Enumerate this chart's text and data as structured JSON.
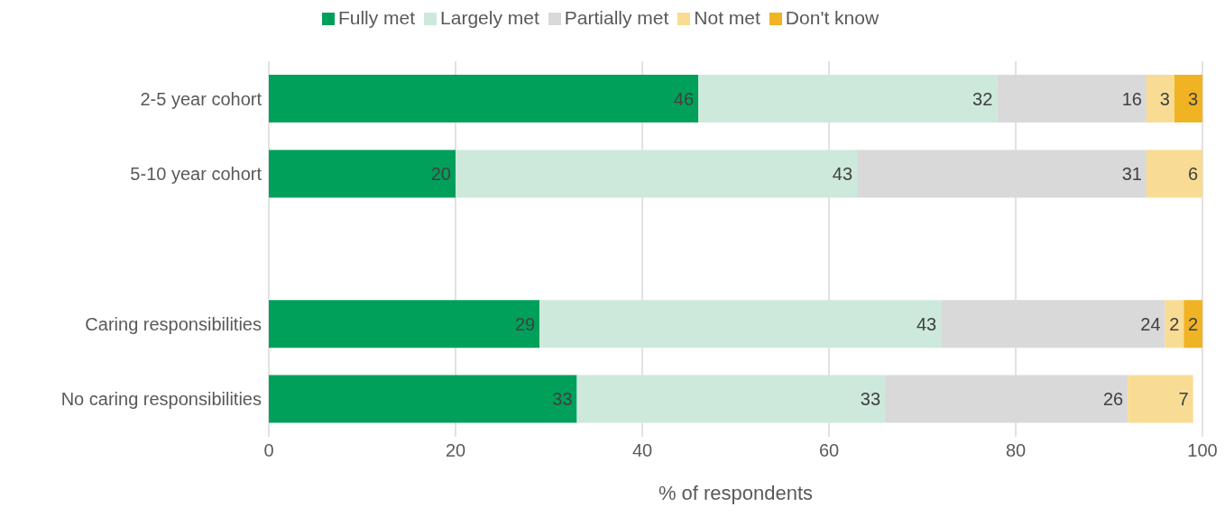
{
  "chart_data": {
    "type": "bar",
    "orientation": "horizontal",
    "stacked": true,
    "xlabel": "% of respondents",
    "categories": [
      "2-5 year cohort",
      "5-10 year cohort",
      null,
      "Caring responsibilities",
      "No caring responsibilities"
    ],
    "series": [
      {
        "name": "Fully met",
        "color": "#00a05a",
        "values": [
          46,
          20,
          null,
          29,
          33
        ]
      },
      {
        "name": "Largely met",
        "color": "#cde9dc",
        "values": [
          32,
          43,
          null,
          43,
          33
        ]
      },
      {
        "name": "Partially met",
        "color": "#d9d9d9",
        "values": [
          16,
          31,
          null,
          24,
          26
        ]
      },
      {
        "name": "Not met",
        "color": "#f8dc94",
        "values": [
          3,
          6,
          null,
          2,
          7
        ]
      },
      {
        "name": "Don't know",
        "color": "#f0b323",
        "values": [
          3,
          null,
          null,
          2,
          null
        ]
      }
    ],
    "xlim": [
      0,
      100
    ],
    "xticks": [
      0,
      20,
      40,
      60,
      80,
      100
    ],
    "grid": "x",
    "legend": "top",
    "data_labels": true
  }
}
